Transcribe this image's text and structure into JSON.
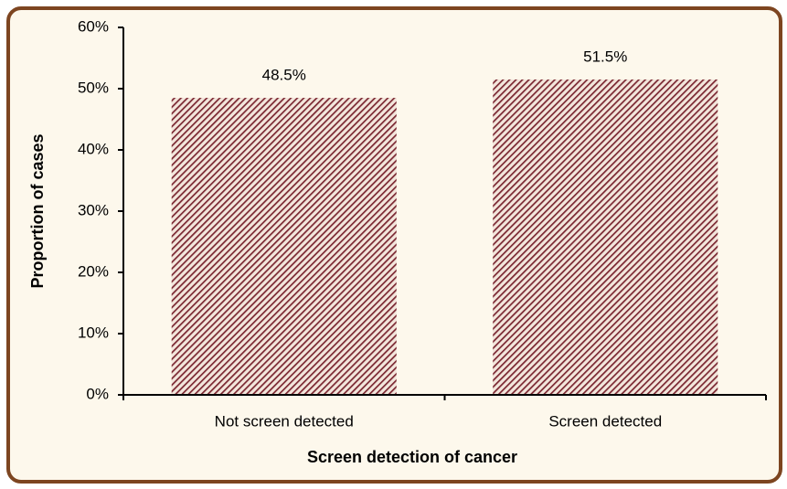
{
  "chart_data": {
    "type": "bar",
    "x_label": "Screen detection of cancer",
    "y_label": "Proportion of cases",
    "categories": [
      "Not screen detected",
      "Screen detected"
    ],
    "values": [
      48.5,
      51.5
    ],
    "value_labels": [
      "48.5%",
      "51.5%"
    ],
    "color": "#7a2630",
    "ylim": [
      0,
      60
    ],
    "yticks": [
      {
        "value": 0,
        "label": "0%"
      },
      {
        "value": 10,
        "label": "10%"
      },
      {
        "value": 20,
        "label": "20%"
      },
      {
        "value": 30,
        "label": "30%"
      },
      {
        "value": 40,
        "label": "40%"
      },
      {
        "value": 50,
        "label": "50%"
      },
      {
        "value": 60,
        "label": "60%"
      }
    ],
    "grid": false
  }
}
